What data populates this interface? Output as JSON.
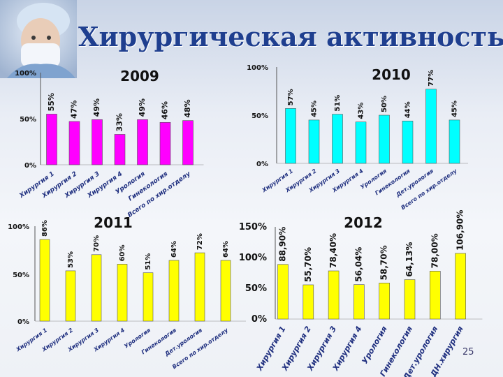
{
  "slide": {
    "title": "Хирургическая активность",
    "page_number": "25"
  },
  "colors": {
    "2009": "#ff00ff",
    "2010": "#00ffff",
    "2011": "#ffff00",
    "2012": "#ffff00",
    "title": "#1f3f8f"
  },
  "chart_data": [
    {
      "type": "bar",
      "title": "2009",
      "categories": [
        "Хирургия 1",
        "Хирургия 2",
        "Хирургия 3",
        "Хирургия 4",
        "Урология",
        "Гинекология",
        "Всего по хир.отделу"
      ],
      "values": [
        55,
        47,
        49,
        33,
        49,
        46,
        48
      ],
      "value_labels": [
        "55%",
        "47%",
        "49%",
        "33%",
        "49%",
        "46%",
        "48%"
      ],
      "y_ticks": [
        "0%",
        "50%",
        "100%"
      ],
      "ylim": [
        0,
        100
      ],
      "grid": false
    },
    {
      "type": "bar",
      "title": "2010",
      "categories": [
        "Хирургия 1",
        "Хирургия 2",
        "Хирургия 3",
        "Хирургия 4",
        "Урология",
        "Гинекология",
        "Дет.урология",
        "Всего по хир.отделу"
      ],
      "values": [
        57,
        45,
        51,
        43,
        50,
        44,
        77,
        45
      ],
      "value_labels": [
        "57%",
        "45%",
        "51%",
        "43%",
        "50%",
        "44%",
        "77%",
        "45%"
      ],
      "y_ticks": [
        "0%",
        "50%",
        "100%"
      ],
      "ylim": [
        0,
        100
      ],
      "grid": false
    },
    {
      "type": "bar",
      "title": "2011",
      "categories": [
        "Хирургия 1",
        "Хирургия 2",
        "Хирургия 3",
        "Хирургия 4",
        "Урология",
        "Гинекология",
        "Дет.урология",
        "Всего по хир.отделу"
      ],
      "values": [
        86,
        53,
        70,
        60,
        51,
        64,
        72,
        64
      ],
      "value_labels": [
        "86%",
        "53%",
        "70%",
        "60%",
        "51%",
        "64%",
        "72%",
        "64%"
      ],
      "y_ticks": [
        "0%",
        "50%",
        "100%"
      ],
      "ylim": [
        0,
        100
      ],
      "grid": false
    },
    {
      "type": "bar",
      "title": "2012",
      "categories": [
        "Хирургия 1",
        "Хирургия 2",
        "Хирургия 3",
        "Хирургия 4",
        "Урология",
        "Гинекология",
        "Дет.урология",
        "ДН.хирургия"
      ],
      "values": [
        88.9,
        55.7,
        78.4,
        56.04,
        58.7,
        64.13,
        78.0,
        106.9
      ],
      "value_labels": [
        "88,90%",
        "55,70%",
        "78,40%",
        "56,04%",
        "58,70%",
        "64,13%",
        "78,00%",
        "106,90%"
      ],
      "y_ticks": [
        "0%",
        "50%",
        "100%",
        "150%"
      ],
      "ylim": [
        0,
        150
      ],
      "grid": false
    }
  ]
}
